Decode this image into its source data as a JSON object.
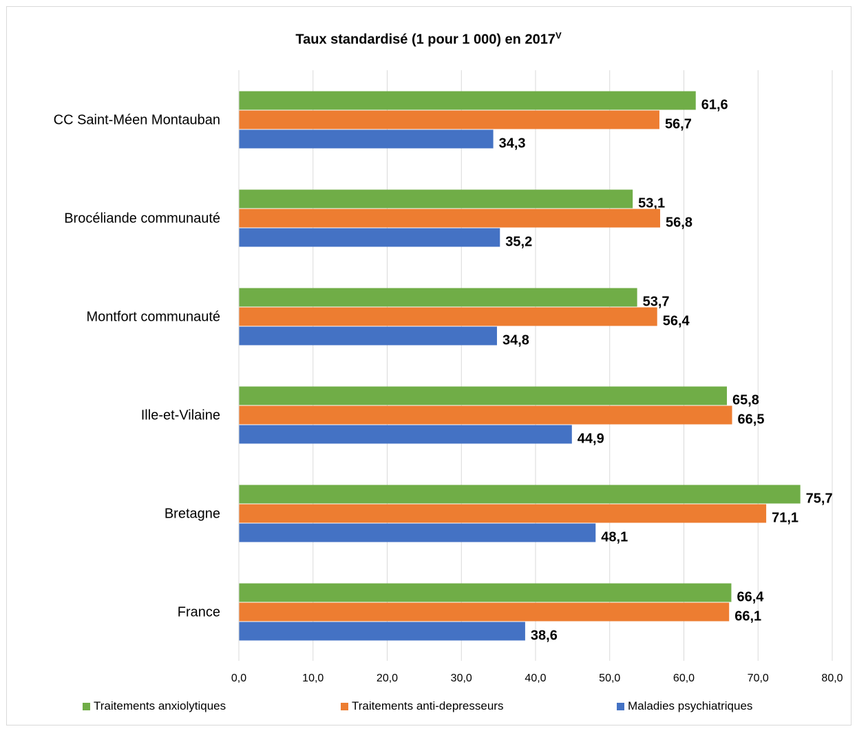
{
  "chart_data": {
    "type": "bar",
    "orientation": "horizontal",
    "title": "Taux standardisé (1 pour 1 000) en 2017",
    "title_superscript": "V",
    "categories": [
      "CC Saint-Méen Montauban",
      "Brocéliande communauté",
      "Montfort communauté",
      "Ille-et-Vilaine",
      "Bretagne",
      "France"
    ],
    "series": [
      {
        "name": "Traitements anxiolytiques",
        "color": "#70ad47",
        "values": [
          61.6,
          53.1,
          53.7,
          65.8,
          75.7,
          66.4
        ],
        "labels": [
          "61,6",
          "53,1",
          "53,7",
          "65,8",
          "75,7",
          "66,4"
        ]
      },
      {
        "name": "Traitements anti-depresseurs",
        "color": "#ed7d31",
        "values": [
          56.7,
          56.8,
          56.4,
          66.5,
          71.1,
          66.1
        ],
        "labels": [
          "56,7",
          "56,8",
          "56,4",
          "66,5",
          "71,1",
          "66,1"
        ]
      },
      {
        "name": "Maladies psychiatriques",
        "color": "#4472c4",
        "values": [
          34.3,
          35.2,
          34.8,
          44.9,
          48.1,
          38.6
        ],
        "labels": [
          "34,3",
          "35,2",
          "34,8",
          "44,9",
          "48,1",
          "38,6"
        ]
      }
    ],
    "xlim": [
      0,
      80
    ],
    "xticks": [
      0,
      10,
      20,
      30,
      40,
      50,
      60,
      70,
      80
    ],
    "xtick_labels": [
      "0,0",
      "10,0",
      "20,0",
      "30,0",
      "40,0",
      "50,0",
      "60,0",
      "70,0",
      "80,0"
    ],
    "grid": true,
    "legend_position": "bottom",
    "data_labels": true
  }
}
